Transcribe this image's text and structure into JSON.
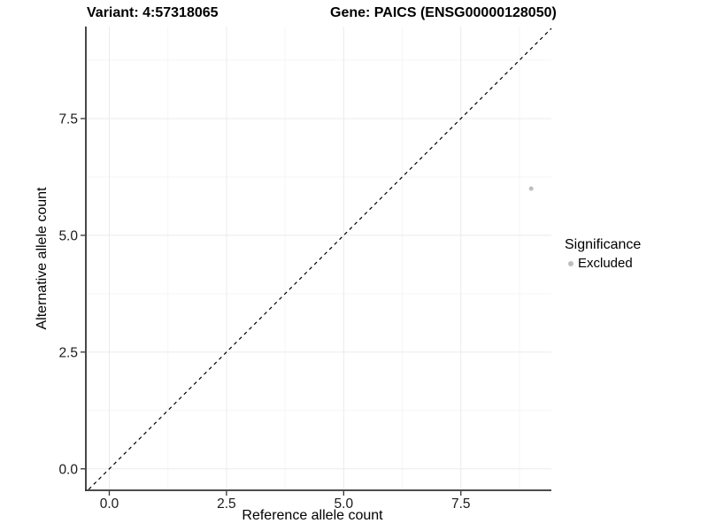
{
  "chart_data": {
    "type": "scatter",
    "title_left": "Variant: 4:57318065",
    "title_right": "Gene: PAICS (ENSG00000128050)",
    "xlabel": "Reference allele count",
    "ylabel": "Alternative allele count",
    "xlim": [
      -0.5,
      9.43
    ],
    "ylim": [
      -0.44,
      9.47
    ],
    "x_ticks": [
      0,
      2.5,
      5,
      7.5
    ],
    "y_ticks": [
      0,
      2.5,
      5,
      7.5
    ],
    "x_minor_ticks": [
      1.25,
      3.75,
      6.25,
      8.75
    ],
    "y_minor_ticks": [
      1.25,
      3.75,
      6.25,
      8.75
    ],
    "grid": true,
    "reference_line": {
      "type": "identity",
      "slope": 1,
      "intercept": 0,
      "style": "dashed",
      "color": "#000000"
    },
    "series": [
      {
        "name": "Excluded",
        "color": "#bebebe",
        "points": [
          {
            "x": 9,
            "y": 6
          }
        ]
      }
    ],
    "legend": {
      "title": "Significance",
      "position": "right",
      "items": [
        {
          "label": "Excluded",
          "color": "#bebebe"
        }
      ]
    },
    "colors": {
      "background": "#ffffff",
      "axis_line": "#333333",
      "axis_text": "#1a1a1a",
      "grid_major": "#ebebeb",
      "grid_minor": "#f5f5f5"
    }
  }
}
